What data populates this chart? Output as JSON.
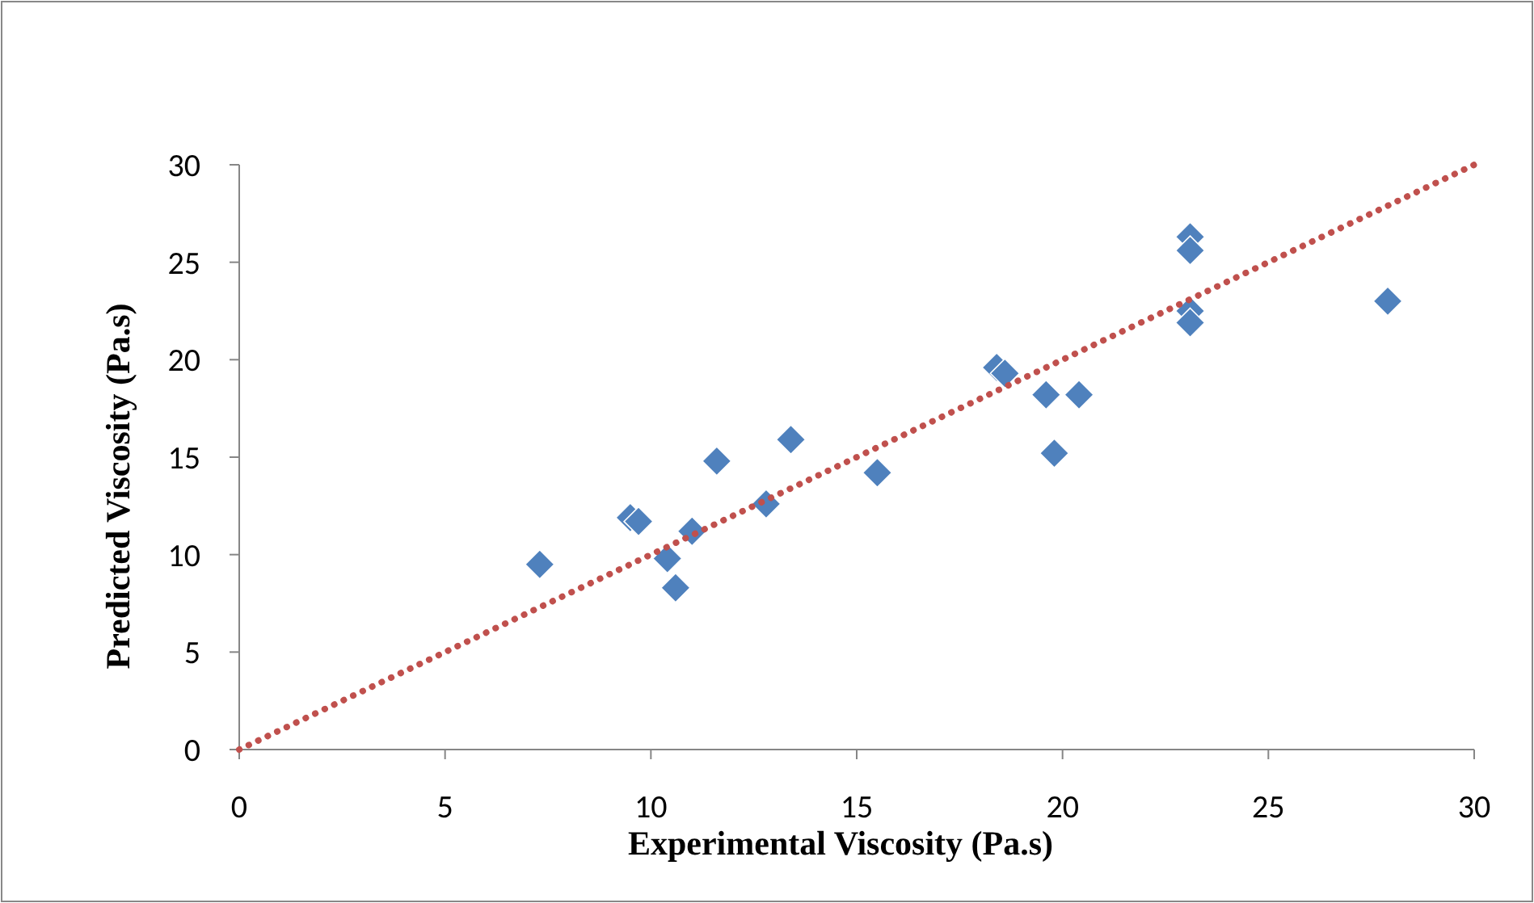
{
  "chart_data": {
    "type": "scatter",
    "xlabel": "Experimental Viscosity (Pa.s)",
    "ylabel": "Predicted Viscosity (Pa.s)",
    "xlim": [
      0,
      30
    ],
    "ylim": [
      0,
      30
    ],
    "xticks": [
      0,
      5,
      10,
      15,
      20,
      25,
      30
    ],
    "yticks": [
      0,
      5,
      10,
      15,
      20,
      25,
      30
    ],
    "grid": false,
    "series": [
      {
        "color": "#4f81bd",
        "marker": "diamond",
        "x": [
          7.3,
          9.5,
          9.7,
          10.4,
          10.6,
          11,
          11.6,
          12.8,
          13.4,
          15.5,
          18.4,
          18.6,
          19.6,
          20.4,
          19.8,
          23.1,
          23.1,
          23.1,
          23.1,
          27.9
        ],
        "values": [
          9.5,
          11.9,
          11.7,
          9.8,
          8.3,
          11.2,
          14.8,
          12.6,
          15.9,
          14.2,
          19.6,
          19.3,
          18.2,
          18.2,
          15.2,
          26.3,
          25.6,
          22.5,
          21.9,
          23
        ]
      },
      {
        "type": "line",
        "color": "#c0504d",
        "line_style": "dotted",
        "marker": "none",
        "x": [
          0,
          30
        ],
        "values": [
          0,
          30
        ]
      }
    ]
  }
}
